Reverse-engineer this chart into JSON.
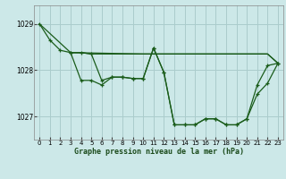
{
  "title": "Graphe pression niveau de la mer (hPa)",
  "background_color": "#cce8e8",
  "grid_color": "#aacccc",
  "line_color": "#1a5c1a",
  "xlim": [
    -0.5,
    23.5
  ],
  "ylim": [
    1026.5,
    1029.4
  ],
  "yticks": [
    1027,
    1028,
    1029
  ],
  "xticks": [
    0,
    1,
    2,
    3,
    4,
    5,
    6,
    7,
    8,
    9,
    10,
    11,
    12,
    13,
    14,
    15,
    16,
    17,
    18,
    19,
    20,
    21,
    22,
    23
  ],
  "series1_x": [
    0,
    1,
    2,
    3,
    4,
    5,
    6,
    7,
    8,
    9,
    10,
    11,
    12,
    13,
    14,
    15,
    16,
    17,
    18,
    19,
    20,
    21,
    22,
    23
  ],
  "series1_y": [
    1029.0,
    1028.65,
    1028.43,
    1028.38,
    1027.78,
    1027.78,
    1027.68,
    1027.85,
    1027.85,
    1027.82,
    1027.82,
    1028.48,
    1027.95,
    1026.82,
    1026.82,
    1026.82,
    1026.95,
    1026.95,
    1026.82,
    1026.82,
    1026.95,
    1027.68,
    1028.1,
    1028.15
  ],
  "series2_x": [
    0,
    3,
    10,
    14,
    17,
    19,
    22,
    23
  ],
  "series2_y": [
    1029.0,
    1028.38,
    1028.35,
    1028.35,
    1028.35,
    1028.35,
    1028.35,
    1028.15
  ],
  "series3_x": [
    3,
    4,
    5,
    10,
    11,
    12,
    13,
    14,
    15,
    16,
    17,
    18,
    19,
    20,
    21,
    22,
    23
  ],
  "series3_y": [
    1028.38,
    1028.38,
    1028.35,
    1028.35,
    1028.35,
    1028.35,
    1028.35,
    1028.35,
    1028.35,
    1028.35,
    1028.35,
    1028.35,
    1028.35,
    1028.35,
    1028.35,
    1028.35,
    1028.15
  ],
  "series4_x": [
    3,
    4,
    5,
    6,
    7,
    8,
    9,
    10,
    11,
    12,
    13,
    14,
    15,
    16,
    17,
    18,
    19,
    20,
    21,
    22,
    23
  ],
  "series4_y": [
    1028.38,
    1028.38,
    1028.35,
    1027.78,
    1027.85,
    1027.85,
    1027.82,
    1027.82,
    1028.48,
    1027.95,
    1026.82,
    1026.82,
    1026.82,
    1026.95,
    1026.95,
    1026.82,
    1026.82,
    1026.95,
    1027.48,
    1027.72,
    1028.15
  ]
}
